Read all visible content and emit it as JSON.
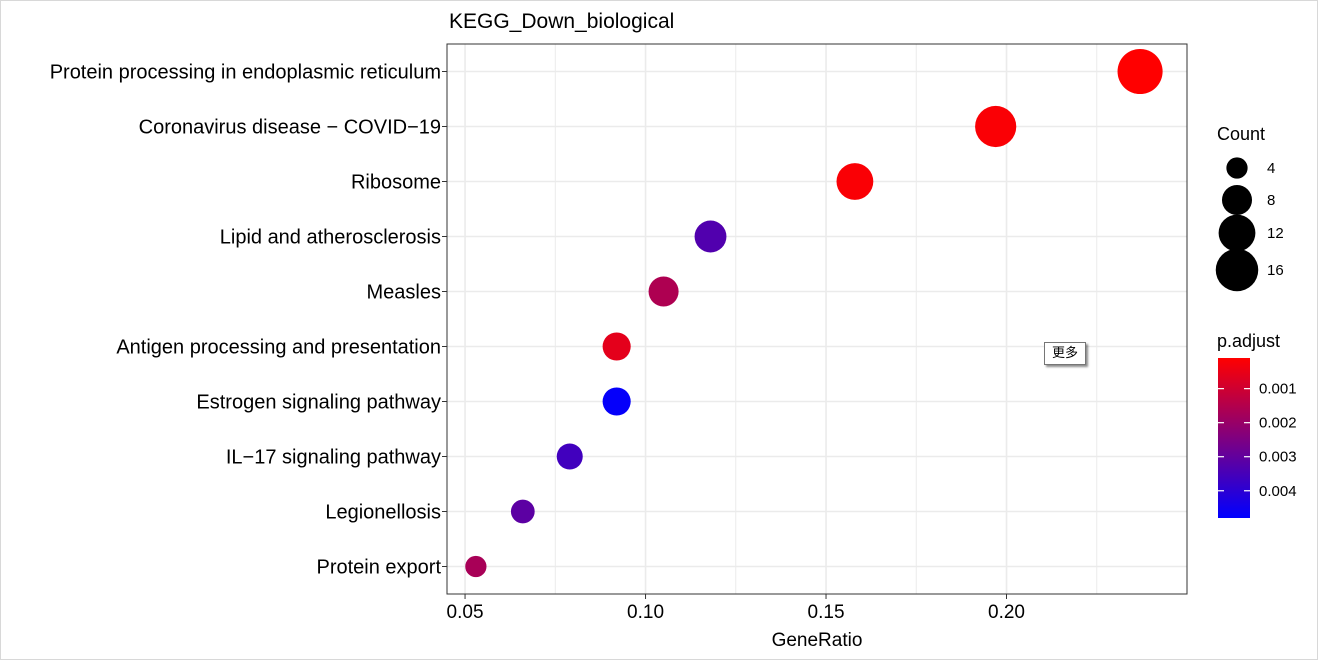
{
  "chart_data": {
    "type": "scatter",
    "title": "KEGG_Down_biological",
    "xlabel": "GeneRatio",
    "ylabel": "",
    "xlim": [
      0.045,
      0.25
    ],
    "x_ticks": [
      0.05,
      0.1,
      0.15,
      0.2
    ],
    "x_tick_labels": [
      "0.05",
      "0.10",
      "0.15",
      "0.20"
    ],
    "grid": true,
    "categories": [
      "Protein processing in endoplasmic reticulum",
      "Coronavirus disease − COVID−19",
      "Ribosome",
      "Lipid and atherosclerosis",
      "Measles",
      "Antigen processing and presentation",
      "Estrogen signaling pathway",
      "IL−17 signaling pathway",
      "Legionellosis",
      "Protein export"
    ],
    "points": [
      {
        "category": "Protein processing in endoplasmic reticulum",
        "x": 0.237,
        "count": 18,
        "p_adjust": 0.0001
      },
      {
        "category": "Coronavirus disease − COVID−19",
        "x": 0.197,
        "count": 15,
        "p_adjust": 0.0002
      },
      {
        "category": "Ribosome",
        "x": 0.158,
        "count": 12,
        "p_adjust": 0.0002
      },
      {
        "category": "Lipid and atherosclerosis",
        "x": 0.118,
        "count": 9,
        "p_adjust": 0.0033
      },
      {
        "category": "Measles",
        "x": 0.105,
        "count": 8,
        "p_adjust": 0.0016
      },
      {
        "category": "Antigen processing and presentation",
        "x": 0.092,
        "count": 7,
        "p_adjust": 0.0006
      },
      {
        "category": "Estrogen signaling pathway",
        "x": 0.092,
        "count": 7,
        "p_adjust": 0.0047
      },
      {
        "category": "IL−17 signaling pathway",
        "x": 0.079,
        "count": 6,
        "p_adjust": 0.0036
      },
      {
        "category": "Legionellosis",
        "x": 0.066,
        "count": 5,
        "p_adjust": 0.0031
      },
      {
        "category": "Protein export",
        "x": 0.053,
        "count": 4,
        "p_adjust": 0.0017
      }
    ],
    "size_legend": {
      "title": "Count",
      "values": [
        4,
        8,
        12,
        16
      ],
      "labels": [
        "4",
        "8",
        "12",
        "16"
      ]
    },
    "color_legend": {
      "title": "p.adjust",
      "ticks": [
        0.001,
        0.002,
        0.003,
        0.004
      ],
      "tick_labels": [
        "0.001",
        "0.002",
        "0.003",
        "0.004"
      ],
      "range": [
        0.0001,
        0.0048
      ],
      "low_color": "#FF0000",
      "high_color": "#0000FF"
    },
    "legend_position": "right"
  },
  "tooltip": {
    "text": "更多"
  }
}
